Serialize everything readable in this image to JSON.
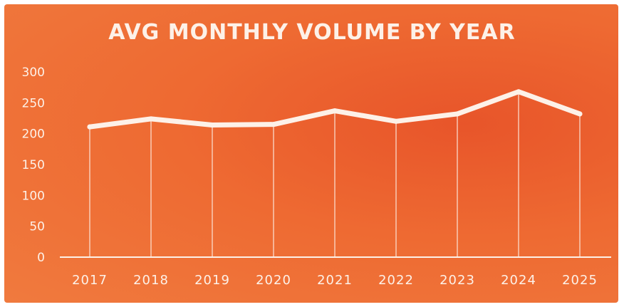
{
  "chart_data": {
    "type": "line",
    "title": "AVG MONTHLY VOLUME BY YEAR",
    "xlabel": "",
    "ylabel": "",
    "categories": [
      "2017",
      "2018",
      "2019",
      "2020",
      "2021",
      "2022",
      "2023",
      "2024",
      "2025"
    ],
    "series": [
      {
        "name": "",
        "values": [
          211,
          224,
          214,
          215,
          237,
          220,
          232,
          268,
          232
        ]
      }
    ],
    "ylim": [
      0,
      300
    ],
    "yticks": [
      "0",
      "50",
      "100",
      "150",
      "200",
      "250",
      "300"
    ],
    "grid": false,
    "drop_lines": true,
    "colors": {
      "background": "#ee6a32",
      "line": "#fdf1e8",
      "text": "#fdf1e8"
    }
  }
}
